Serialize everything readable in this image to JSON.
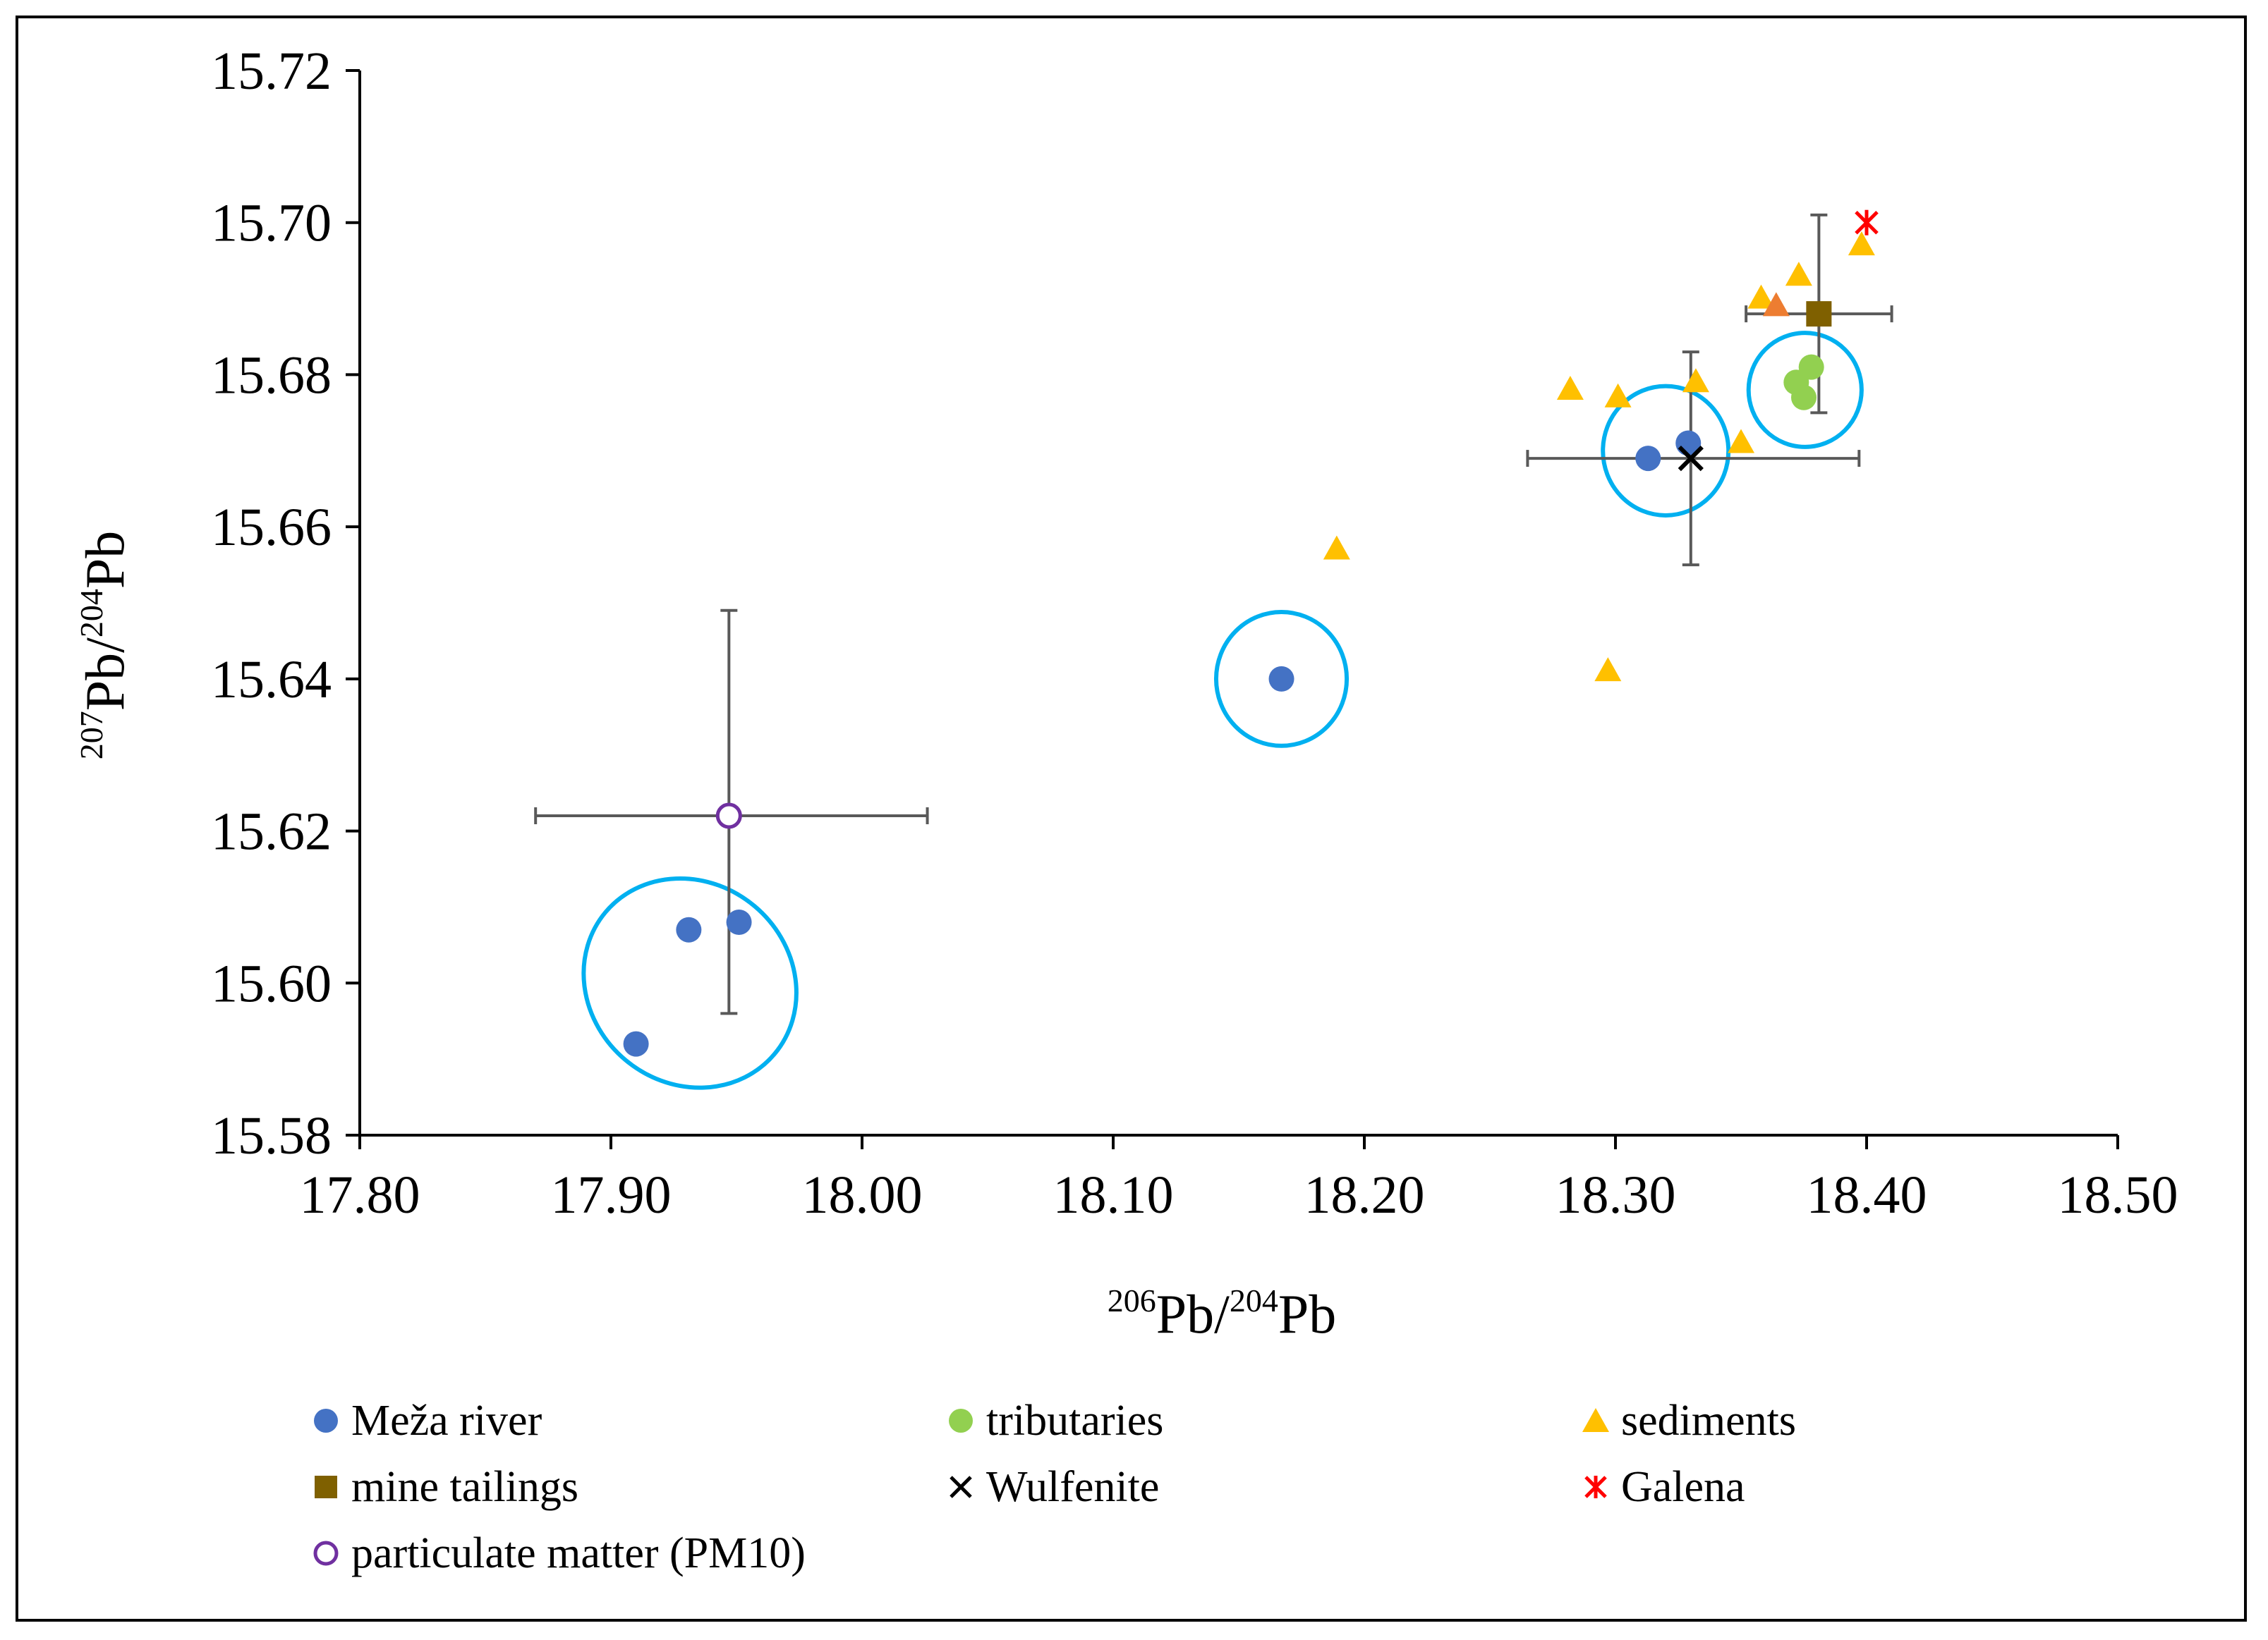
{
  "chart_data": {
    "type": "scatter",
    "title": "",
    "xlabel": {
      "pre": "206",
      "main1": "Pb/",
      "pre2": "204",
      "main2": "Pb"
    },
    "ylabel": {
      "pre": "207",
      "main1": "Pb/",
      "pre2": "204",
      "main2": "Pb"
    },
    "xlim": [
      17.8,
      18.5
    ],
    "ylim": [
      15.58,
      15.72
    ],
    "xticks": [
      "17.80",
      "17.90",
      "18.00",
      "18.10",
      "18.20",
      "18.30",
      "18.40",
      "18.50"
    ],
    "yticks": [
      "15.58",
      "15.60",
      "15.62",
      "15.64",
      "15.66",
      "15.68",
      "15.70",
      "15.72"
    ],
    "grid": false,
    "legend_position": "bottom",
    "colors": {
      "meza": "#4472c4",
      "tributaries": "#92d050",
      "sediments": "#ffc000",
      "sediments_highlight": "#ed7d31",
      "tailings": "#7f6000",
      "wulfenite": "#000000",
      "galena": "#ff0000",
      "pm10": "#7030a0",
      "circle": "#00b0f0",
      "errorbar": "#595959"
    },
    "series": [
      {
        "key": "meza",
        "name": "Meža river",
        "marker": "circle",
        "points": [
          [
            17.91,
            15.592
          ],
          [
            17.931,
            15.607
          ],
          [
            17.951,
            15.608
          ],
          [
            18.167,
            15.64
          ],
          [
            18.313,
            15.669
          ],
          [
            18.329,
            15.671
          ]
        ]
      },
      {
        "key": "tributaries",
        "name": "tributaries",
        "marker": "circle",
        "points": [
          [
            18.372,
            15.679
          ],
          [
            18.375,
            15.677
          ],
          [
            18.378,
            15.681
          ]
        ]
      },
      {
        "key": "sediments",
        "name": "sediments",
        "marker": "triangle",
        "points": [
          [
            18.189,
            15.657
          ],
          [
            18.282,
            15.678
          ],
          [
            18.301,
            15.677
          ],
          [
            18.332,
            15.679
          ],
          [
            18.35,
            15.671
          ],
          [
            18.297,
            15.641
          ],
          [
            18.358,
            15.69
          ],
          [
            18.373,
            15.693
          ],
          [
            18.398,
            15.697
          ]
        ]
      },
      {
        "key": "sediments_highlight",
        "name": "",
        "marker": "triangle",
        "points": [
          [
            18.364,
            15.689
          ]
        ]
      },
      {
        "key": "tailings",
        "name": "mine tailings",
        "marker": "square",
        "points": [
          [
            18.381,
            15.688
          ]
        ],
        "xerr": [
          [
            18.352,
            18.41
          ]
        ],
        "yerr": [
          [
            15.675,
            15.701
          ]
        ]
      },
      {
        "key": "wulfenite",
        "name": "Wulfenite",
        "marker": "x",
        "points": [
          [
            18.33,
            15.669
          ]
        ],
        "xerr": [
          [
            18.265,
            18.397
          ]
        ],
        "yerr": [
          [
            15.655,
            15.683
          ]
        ]
      },
      {
        "key": "galena",
        "name": "Galena",
        "marker": "asterisk",
        "points": [
          [
            18.4,
            15.7
          ]
        ]
      },
      {
        "key": "pm10",
        "name": "particulate matter (PM10)",
        "marker": "open-circle",
        "points": [
          [
            17.947,
            15.622
          ]
        ],
        "xerr": [
          [
            17.87,
            18.026
          ]
        ],
        "yerr": [
          [
            15.596,
            15.649
          ]
        ]
      }
    ],
    "annotations": [
      {
        "type": "ellipse",
        "cx": 17.9315,
        "cy": 15.6,
        "rx_data": 0.04,
        "ry_data": 0.0145,
        "rotation_deg": -50
      },
      {
        "type": "ellipse",
        "cx": 18.167,
        "cy": 15.64,
        "rx_data": 0.026,
        "ry_data": 0.0088,
        "rotation_deg": 0
      },
      {
        "type": "ellipse",
        "cx": 18.32,
        "cy": 15.67,
        "rx_data": 0.025,
        "ry_data": 0.0085,
        "rotation_deg": 0
      },
      {
        "type": "ellipse",
        "cx": 18.3755,
        "cy": 15.678,
        "rx_data": 0.0225,
        "ry_data": 0.0075,
        "rotation_deg": 0
      }
    ]
  },
  "legend": {
    "items": [
      {
        "key": "meza",
        "label": "Meža river"
      },
      {
        "key": "tributaries",
        "label": "tributaries"
      },
      {
        "key": "sediments",
        "label": "sediments"
      },
      {
        "key": "tailings",
        "label": "mine tailings"
      },
      {
        "key": "wulfenite",
        "label": "Wulfenite"
      },
      {
        "key": "galena",
        "label": "Galena"
      },
      {
        "key": "pm10",
        "label": "particulate matter (PM10)"
      }
    ]
  }
}
